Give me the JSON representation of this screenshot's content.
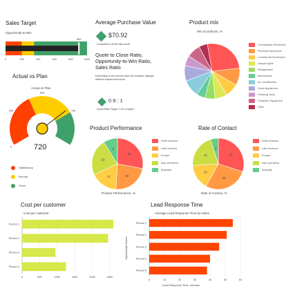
{
  "sales_target": {
    "title": "Sales Target",
    "subtitle": "Opportunity-to-Win",
    "target_label": "900",
    "ticks": [
      "0",
      "200",
      "400",
      "600",
      "800",
      "1000"
    ],
    "actual_value": 900,
    "max": 1000
  },
  "avg_purchase": {
    "title": "Average Purchase Value",
    "value": "$70.92",
    "note": "Compared to 63.50 last month"
  },
  "quote_close": {
    "title": "Quote to Close Ratio, Opportunity-to-Win Ratio, Sales Ratio",
    "description": "Depending on the current value the indicator displays different shapes and colors.",
    "value": "0.9 : 1",
    "note": "Quota Ratio Target: 1:20 or higher"
  },
  "actual_vs_plan": {
    "title": "Actual vs Plan",
    "gauge_title": "Actual vs Plan",
    "value": "720",
    "ticks": [
      "0",
      "250",
      "500",
      "750"
    ],
    "legend": [
      {
        "label": "Satisfactory",
        "color": "#ff4000"
      },
      {
        "label": "Normal",
        "color": "#ffcc00"
      },
      {
        "label": "Good",
        "color": "#3fa06a"
      }
    ]
  },
  "product_mix": {
    "title": "Product mix",
    "chart_title": "Mix of products, %",
    "legend": [
      "Consumable Electronics",
      "Personal Electronics",
      "Commercial Electronics",
      "Lamps/Lights",
      "Refrigerators",
      "Kitchenware",
      "Air Conditioners",
      "Home Appliances",
      "Cleaning Tools",
      "Computer Equipment",
      "Other"
    ]
  },
  "product_performance": {
    "title": "Product Performance",
    "xlabel": "Product Performance, %",
    "legend": [
      "North America",
      "Latin America",
      "Europe",
      "Asia and Africa",
      "Australia"
    ]
  },
  "rate_of_contact": {
    "title": "Rate of Contact",
    "xlabel": "Rate of Contact, %",
    "legend": [
      "North America",
      "Latin America",
      "Europe",
      "Asia and Africa",
      "Australia"
    ]
  },
  "cost_per_customer": {
    "title": "Cost per customer",
    "chart_title": "Cost per customer",
    "ticks": [
      "0",
      "500",
      "1000",
      "1500",
      "2000",
      "2500"
    ]
  },
  "lead_response": {
    "title": "Lead Response Time",
    "chart_title": "Average Lead Response Time by Sales",
    "ylabel": "Opportunity Owner",
    "xlabel": "Lead Response Time, minutes",
    "ticks": [
      "0",
      "10",
      "20",
      "30",
      "40",
      "50",
      "60"
    ]
  },
  "chart_data": [
    {
      "type": "pie",
      "id": "product_mix",
      "title": "Mix of products, %",
      "categories": [
        "Consumable Electronics",
        "Personal Electronics",
        "Commercial Electronics",
        "Lamps/Lights",
        "Refrigerators",
        "Kitchenware",
        "Air Conditioners",
        "Home Appliances",
        "Cleaning Tools",
        "Computer Equipment",
        "Other"
      ],
      "values": [
        26,
        10,
        8,
        7,
        6,
        5,
        10,
        9,
        6,
        8,
        5
      ],
      "colors": [
        "#ff5555",
        "#ff9944",
        "#ffcc44",
        "#dde855",
        "#99dd66",
        "#66cc99",
        "#88ccdd",
        "#aaaadd",
        "#cc99cc",
        "#cc6688",
        "#b03050"
      ]
    },
    {
      "type": "pie",
      "id": "product_performance",
      "title": "Product Performance",
      "categories": [
        "North America",
        "Latin America",
        "Europe",
        "Asia and Africa",
        "Australia"
      ],
      "values": [
        28,
        23,
        17,
        23,
        9
      ],
      "labels": [
        "28",
        "23",
        "17",
        "23",
        "9"
      ],
      "colors": [
        "#ff5555",
        "#ff9944",
        "#ffcc44",
        "#ccdd44",
        "#66cc88"
      ]
    },
    {
      "type": "pie",
      "id": "rate_of_contact",
      "title": "Rate of Contact",
      "categories": [
        "North America",
        "Latin America",
        "Europe",
        "Asia and Africa",
        "Australia"
      ],
      "values": [
        30,
        28,
        16,
        21,
        5
      ],
      "labels": [
        "30",
        "28",
        "16",
        "21",
        "5"
      ],
      "colors": [
        "#ff5555",
        "#ff9944",
        "#ffcc44",
        "#ccdd44",
        "#66cc88"
      ]
    },
    {
      "type": "bar",
      "id": "cost_per_customer",
      "orientation": "horizontal",
      "title": "Cost per customer",
      "categories": [
        "Person 1",
        "Person 2",
        "Person 3",
        "Person 4"
      ],
      "values": [
        2600,
        2450,
        950,
        1250
      ],
      "xlim": [
        0,
        2500
      ],
      "color": "#d6e84a"
    },
    {
      "type": "bar",
      "id": "lead_response",
      "orientation": "horizontal",
      "title": "Average Lead Response Time by Sales",
      "categories": [
        "Person 1",
        "Person 2",
        "Person 3",
        "Person 4",
        "Person 5"
      ],
      "values": [
        55,
        51,
        46,
        40,
        38
      ],
      "xlim": [
        0,
        60
      ],
      "xlabel": "Lead Response Time, minutes",
      "ylabel": "Opportunity Owner",
      "color": "#ff4400"
    },
    {
      "type": "bar",
      "id": "sales_target",
      "orientation": "horizontal",
      "title": "Sales Target",
      "categories": [
        "Opportunity-to-Win"
      ],
      "values": [
        900
      ],
      "target": 900,
      "xlim": [
        0,
        1000
      ]
    },
    {
      "type": "gauge",
      "id": "actual_vs_plan",
      "title": "Actual vs Plan",
      "value": 720,
      "range": [
        0,
        1000
      ],
      "bands": [
        {
          "label": "Satisfactory",
          "to": 400
        },
        {
          "label": "Normal",
          "to": 750
        },
        {
          "label": "Good",
          "to": 1000
        }
      ]
    }
  ]
}
